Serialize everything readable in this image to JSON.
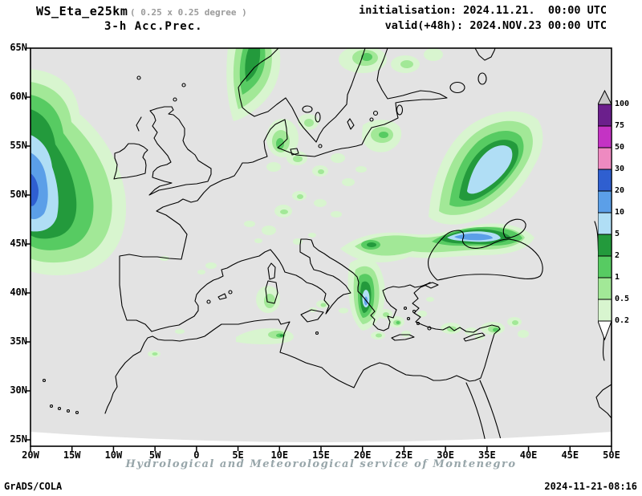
{
  "header": {
    "title": "WS_Eta_e25km",
    "subtitle": "( 0.25 x 0.25 degree )",
    "product": "3-h Acc.Prec.",
    "init": "initialisation: 2024.11.21.  00:00 UTC",
    "valid": "valid(+48h): 2024.NOV.23 00:00 UTC"
  },
  "axes": {
    "lat_labels": [
      "65N",
      "60N",
      "55N",
      "50N",
      "45N",
      "40N",
      "35N",
      "30N",
      "25N"
    ],
    "lon_labels": [
      "20W",
      "15W",
      "10W",
      "5W",
      "0",
      "5E",
      "10E",
      "15E",
      "20E",
      "25E",
      "30E",
      "35E",
      "40E",
      "45E",
      "50E"
    ]
  },
  "colorbar": {
    "labels": [
      "100",
      "75",
      "50",
      "30",
      "20",
      "10",
      "5",
      "2",
      "1",
      "0.5",
      "0.2"
    ],
    "colors": [
      "#6b1f8c",
      "#c433c4",
      "#ee8ac1",
      "#2f5fd0",
      "#5b9fe8",
      "#b0def5",
      "#239a3c",
      "#57cb62",
      "#a2e897",
      "#d8f5cf"
    ],
    "arrow_top": "#c9c9c9",
    "arrow_bottom": "#ffffff"
  },
  "map_colors": {
    "background": "#e3e3e3",
    "outside": "#ffffff",
    "coastline": "#000000",
    "levels": {
      "0.2": "#d8f5cf",
      "0.5": "#a2e897",
      "1": "#57cb62",
      "2": "#239a3c",
      "5": "#b0def5",
      "10": "#5b9fe8",
      "20": "#2f5fd0"
    }
  },
  "footer": {
    "watermark": "Hydrological and Meteorological service of Montenegro",
    "credit": "GrADS/COLA",
    "timestamp": "2024-11-21-08:16"
  }
}
